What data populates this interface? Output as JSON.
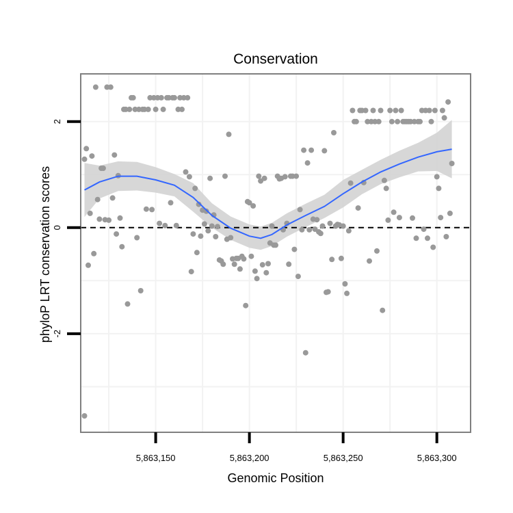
{
  "chart_data": {
    "type": "scatter",
    "title": "Conservation",
    "xlabel": "Genomic Position",
    "ylabel": "phyloP LRT conservation scores",
    "xlim": [
      5863110,
      5863318
    ],
    "ylim": [
      -3.86,
      2.9
    ],
    "x_ticks": [
      5863150,
      5863200,
      5863250,
      5863300
    ],
    "x_tick_labels": [
      "5,863,150",
      "5,863,200",
      "5,863,250",
      "5,863,300"
    ],
    "y_ticks": [
      -2,
      0,
      2
    ],
    "y_tick_labels": [
      "-2",
      "0",
      "2"
    ],
    "grid": true,
    "reference_line": {
      "y": 0,
      "style": "dashed"
    },
    "colors": {
      "points": "#999999",
      "smooth_line": "#3366FF",
      "confidence_band": "#D3D3D3",
      "panel_border": "#7F7F7F",
      "grid": "#F2F2F2"
    },
    "points": [
      [
        5863112,
        1.29
      ],
      [
        5863113,
        1.49
      ],
      [
        5863114,
        -0.71
      ],
      [
        5863115,
        0.27
      ],
      [
        5863116,
        1.35
      ],
      [
        5863117,
        -0.49
      ],
      [
        5863118,
        2.65
      ],
      [
        5863119,
        0.53
      ],
      [
        5863120,
        0.16
      ],
      [
        5863121,
        1.12
      ],
      [
        5863122,
        1.12
      ],
      [
        5863123,
        0.15
      ],
      [
        5863124,
        2.65
      ],
      [
        5863125,
        0.14
      ],
      [
        5863126,
        2.65
      ],
      [
        5863127,
        0.56
      ],
      [
        5863128,
        1.37
      ],
      [
        5863129,
        -0.12
      ],
      [
        5863130,
        0.98
      ],
      [
        5863131,
        0.18
      ],
      [
        5863132,
        -0.36
      ],
      [
        5863133,
        2.23
      ],
      [
        5863134,
        2.23
      ],
      [
        5863135,
        -1.44
      ],
      [
        5863136,
        2.23
      ],
      [
        5863137,
        2.45
      ],
      [
        5863138,
        2.45
      ],
      [
        5863139,
        2.23
      ],
      [
        5863140,
        -0.19
      ],
      [
        5863141,
        2.23
      ],
      [
        5863142,
        -1.19
      ],
      [
        5863143,
        2.23
      ],
      [
        5863144,
        2.23
      ],
      [
        5863145,
        0.35
      ],
      [
        5863146,
        2.23
      ],
      [
        5863147,
        2.45
      ],
      [
        5863148,
        0.34
      ],
      [
        5863149,
        2.45
      ],
      [
        5863150,
        2.23
      ],
      [
        5863151,
        2.45
      ],
      [
        5863152,
        0.08
      ],
      [
        5863153,
        2.45
      ],
      [
        5863154,
        2.23
      ],
      [
        5863155,
        0.04
      ],
      [
        5863156,
        2.45
      ],
      [
        5863157,
        2.45
      ],
      [
        5863158,
        0.47
      ],
      [
        5863159,
        2.45
      ],
      [
        5863160,
        2.45
      ],
      [
        5863161,
        0.04
      ],
      [
        5863162,
        2.23
      ],
      [
        5863163,
        2.45
      ],
      [
        5863164,
        2.23
      ],
      [
        5863165,
        2.45
      ],
      [
        5863166,
        1.05
      ],
      [
        5863167,
        2.45
      ],
      [
        5863168,
        0.96
      ],
      [
        5863169,
        -0.83
      ],
      [
        5863170,
        -0.12
      ],
      [
        5863171,
        0.74
      ],
      [
        5863172,
        -0.47
      ],
      [
        5863173,
        0.44
      ],
      [
        5863174,
        -0.16
      ],
      [
        5863175,
        0.33
      ],
      [
        5863176,
        0.07
      ],
      [
        5863177,
        0.31
      ],
      [
        5863178,
        -0.06
      ],
      [
        5863179,
        0.93
      ],
      [
        5863180,
        0.03
      ],
      [
        5863181,
        0.24
      ],
      [
        5863182,
        -0.17
      ],
      [
        5863183,
        0.02
      ],
      [
        5863184,
        -0.61
      ],
      [
        5863185,
        -0.63
      ],
      [
        5863186,
        -0.69
      ],
      [
        5863187,
        0.97
      ],
      [
        5863188,
        -0.22
      ],
      [
        5863189,
        1.76
      ],
      [
        5863190,
        -0.19
      ],
      [
        5863191,
        -0.59
      ],
      [
        5863192,
        -0.69
      ],
      [
        5863193,
        -0.58
      ],
      [
        5863194,
        -0.58
      ],
      [
        5863195,
        -0.78
      ],
      [
        5863196,
        -0.54
      ],
      [
        5863197,
        -0.59
      ],
      [
        5863198,
        -1.47
      ],
      [
        5863199,
        0.49
      ],
      [
        5863200,
        0.47
      ],
      [
        5863201,
        -0.54
      ],
      [
        5863202,
        0.41
      ],
      [
        5863203,
        -0.82
      ],
      [
        5863204,
        -0.96
      ],
      [
        5863205,
        0.97
      ],
      [
        5863206,
        0.88
      ],
      [
        5863207,
        -0.7
      ],
      [
        5863208,
        0.93
      ],
      [
        5863209,
        -0.85
      ],
      [
        5863210,
        -0.68
      ],
      [
        5863211,
        -0.29
      ],
      [
        5863212,
        0.03
      ],
      [
        5863213,
        -0.33
      ],
      [
        5863214,
        -0.33
      ],
      [
        5863215,
        0.97
      ],
      [
        5863216,
        0.92
      ],
      [
        5863217,
        0.93
      ],
      [
        5863218,
        -0.04
      ],
      [
        5863219,
        0.96
      ],
      [
        5863220,
        0.08
      ],
      [
        5863221,
        -0.69
      ],
      [
        5863222,
        0.97
      ],
      [
        5863223,
        0.97
      ],
      [
        5863224,
        -0.41
      ],
      [
        5863225,
        0.97
      ],
      [
        5863226,
        -0.92
      ],
      [
        5863227,
        0.34
      ],
      [
        5863228,
        -0.04
      ],
      [
        5863229,
        1.46
      ],
      [
        5863230,
        -2.36
      ],
      [
        5863231,
        1.22
      ],
      [
        5863232,
        -0.04
      ],
      [
        5863233,
        1.46
      ],
      [
        5863234,
        0.16
      ],
      [
        5863235,
        -0.03
      ],
      [
        5863236,
        0.15
      ],
      [
        5863237,
        -0.08
      ],
      [
        5863238,
        -0.11
      ],
      [
        5863239,
        0.03
      ],
      [
        5863240,
        1.45
      ],
      [
        5863241,
        -1.22
      ],
      [
        5863242,
        -1.21
      ],
      [
        5863243,
        0.08
      ],
      [
        5863244,
        -0.6
      ],
      [
        5863245,
        1.79
      ],
      [
        5863246,
        0.03
      ],
      [
        5863247,
        0.06
      ],
      [
        5863248,
        0.05
      ],
      [
        5863249,
        -0.58
      ],
      [
        5863250,
        0.03
      ],
      [
        5863251,
        -1.06
      ],
      [
        5863252,
        -1.24
      ],
      [
        5863253,
        -0.06
      ],
      [
        5863254,
        0.84
      ],
      [
        5863255,
        2.21
      ],
      [
        5863256,
        2.0
      ],
      [
        5863257,
        2.0
      ],
      [
        5863258,
        0.37
      ],
      [
        5863259,
        2.21
      ],
      [
        5863260,
        2.21
      ],
      [
        5863261,
        0.85
      ],
      [
        5863262,
        2.21
      ],
      [
        5863263,
        2.0
      ],
      [
        5863264,
        -0.63
      ],
      [
        5863265,
        2.0
      ],
      [
        5863266,
        2.21
      ],
      [
        5863267,
        2.0
      ],
      [
        5863268,
        -0.44
      ],
      [
        5863269,
        2.0
      ],
      [
        5863270,
        2.21
      ],
      [
        5863271,
        -1.56
      ],
      [
        5863272,
        0.89
      ],
      [
        5863273,
        0.74
      ],
      [
        5863274,
        0.14
      ],
      [
        5863275,
        2.21
      ],
      [
        5863276,
        2.0
      ],
      [
        5863277,
        0.29
      ],
      [
        5863278,
        2.21
      ],
      [
        5863279,
        2.0
      ],
      [
        5863280,
        0.19
      ],
      [
        5863281,
        2.21
      ],
      [
        5863282,
        2.0
      ],
      [
        5863283,
        2.0
      ],
      [
        5863284,
        2.0
      ],
      [
        5863285,
        2.0
      ],
      [
        5863286,
        2.0
      ],
      [
        5863287,
        0.18
      ],
      [
        5863288,
        2.0
      ],
      [
        5863289,
        -0.2
      ],
      [
        5863290,
        2.0
      ],
      [
        5863291,
        2.0
      ],
      [
        5863292,
        2.21
      ],
      [
        5863293,
        -0.03
      ],
      [
        5863294,
        2.21
      ],
      [
        5863295,
        -0.2
      ],
      [
        5863296,
        2.21
      ],
      [
        5863297,
        2.0
      ],
      [
        5863298,
        -0.37
      ],
      [
        5863299,
        2.21
      ],
      [
        5863300,
        0.96
      ],
      [
        5863301,
        0.74
      ],
      [
        5863302,
        0.19
      ],
      [
        5863303,
        2.21
      ],
      [
        5863304,
        2.07
      ],
      [
        5863305,
        -0.17
      ],
      [
        5863306,
        2.37
      ],
      [
        5863307,
        0.27
      ],
      [
        5863308,
        1.21
      ],
      [
        5863112,
        -3.55
      ]
    ],
    "smooth_line": [
      [
        5863112,
        0.71
      ],
      [
        5863120,
        0.86
      ],
      [
        5863130,
        0.97
      ],
      [
        5863140,
        0.97
      ],
      [
        5863150,
        0.9
      ],
      [
        5863160,
        0.8
      ],
      [
        5863170,
        0.57
      ],
      [
        5863180,
        0.23
      ],
      [
        5863190,
        -0.01
      ],
      [
        5863200,
        -0.16
      ],
      [
        5863206,
        -0.2
      ],
      [
        5863212,
        -0.13
      ],
      [
        5863220,
        0.05
      ],
      [
        5863230,
        0.23
      ],
      [
        5863240,
        0.4
      ],
      [
        5863250,
        0.64
      ],
      [
        5863260,
        0.86
      ],
      [
        5863270,
        1.05
      ],
      [
        5863280,
        1.2
      ],
      [
        5863290,
        1.33
      ],
      [
        5863300,
        1.43
      ],
      [
        5863308,
        1.48
      ]
    ],
    "band_upper": [
      [
        5863112,
        1.22
      ],
      [
        5863120,
        1.17
      ],
      [
        5863130,
        1.25
      ],
      [
        5863140,
        1.24
      ],
      [
        5863150,
        1.14
      ],
      [
        5863160,
        1.01
      ],
      [
        5863170,
        0.84
      ],
      [
        5863180,
        0.46
      ],
      [
        5863190,
        0.21
      ],
      [
        5863200,
        0.06
      ],
      [
        5863206,
        0.02
      ],
      [
        5863212,
        0.09
      ],
      [
        5863220,
        0.27
      ],
      [
        5863230,
        0.45
      ],
      [
        5863240,
        0.62
      ],
      [
        5863250,
        0.9
      ],
      [
        5863260,
        1.09
      ],
      [
        5863270,
        1.28
      ],
      [
        5863280,
        1.45
      ],
      [
        5863290,
        1.6
      ],
      [
        5863300,
        1.79
      ],
      [
        5863308,
        2.03
      ]
    ],
    "band_lower": [
      [
        5863112,
        0.2
      ],
      [
        5863120,
        0.55
      ],
      [
        5863130,
        0.69
      ],
      [
        5863140,
        0.7
      ],
      [
        5863150,
        0.66
      ],
      [
        5863160,
        0.59
      ],
      [
        5863170,
        0.3
      ],
      [
        5863180,
        0.0
      ],
      [
        5863190,
        -0.23
      ],
      [
        5863200,
        -0.38
      ],
      [
        5863206,
        -0.42
      ],
      [
        5863212,
        -0.35
      ],
      [
        5863220,
        -0.17
      ],
      [
        5863230,
        0.01
      ],
      [
        5863240,
        0.18
      ],
      [
        5863250,
        0.38
      ],
      [
        5863260,
        0.63
      ],
      [
        5863270,
        0.82
      ],
      [
        5863280,
        0.95
      ],
      [
        5863290,
        1.06
      ],
      [
        5863300,
        1.07
      ],
      [
        5863308,
        0.93
      ]
    ]
  }
}
